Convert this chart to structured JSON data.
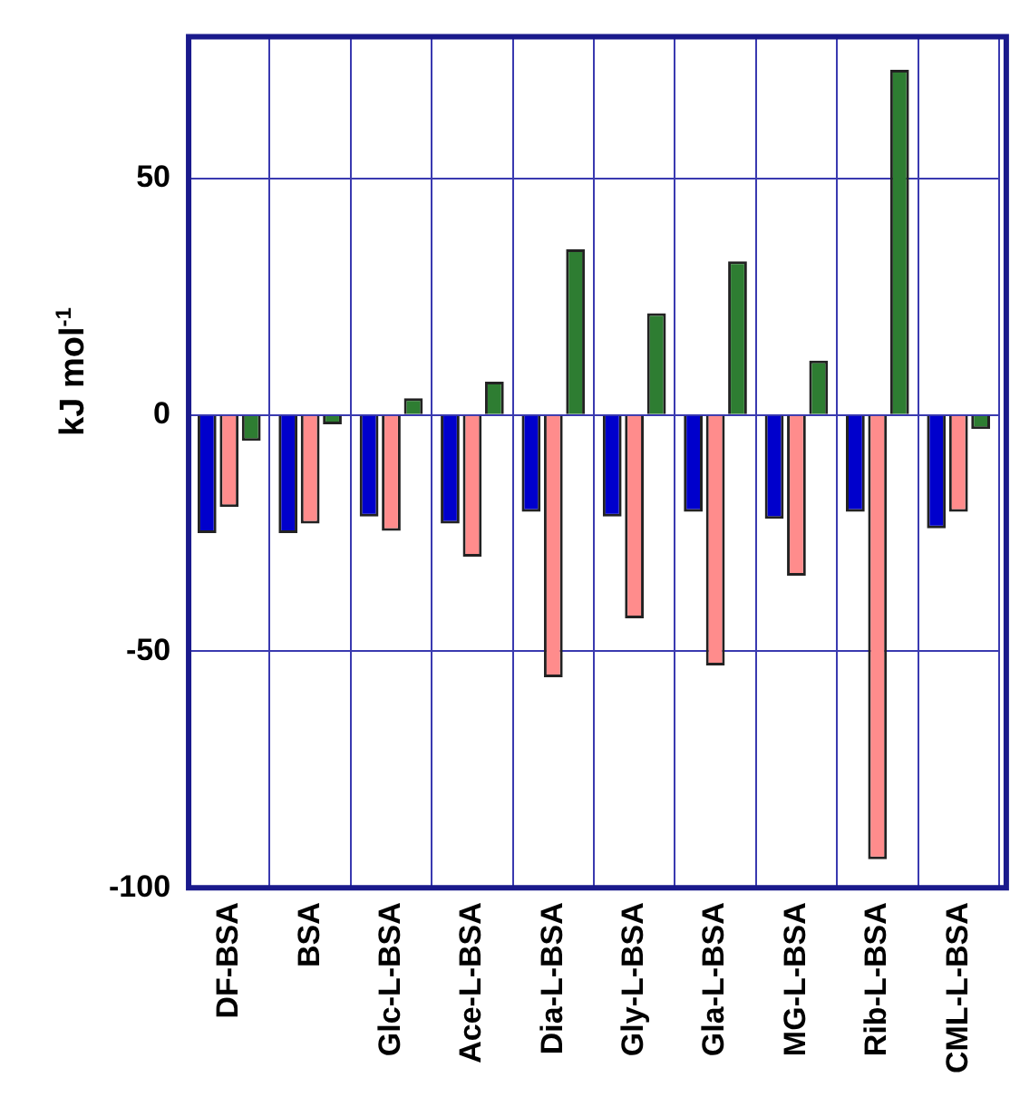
{
  "chart_data": {
    "type": "bar",
    "ylabel": "kJ mol$^{-1}$",
    "categories": [
      "DF-BSA",
      "BSA",
      "Glc-L-BSA",
      "Ace-L-BSA",
      "Dia-L-BSA",
      "Gly-L-BSA",
      "Gla-L-BSA",
      "MG-L-BSA",
      "Rib-L-BSA",
      "CML-L-BSA"
    ],
    "series": [
      {
        "color": "#0000cc",
        "values": [
          -25,
          -25,
          -21.5,
          -23,
          -20.5,
          -21.5,
          -20.5,
          -22,
          -20.5,
          -24
        ]
      },
      {
        "color": "#ff8c8c",
        "values": [
          -19.5,
          -23,
          -24.5,
          -30,
          -55.5,
          -43,
          -53,
          -34,
          -94,
          -20.5
        ]
      },
      {
        "color": "#2e7d32",
        "values": [
          -5.5,
          -2,
          3.5,
          7,
          35,
          21.5,
          32.5,
          11.5,
          73,
          -3
        ]
      }
    ],
    "ylim": [
      -100,
      80
    ],
    "yticks": [
      -100,
      -50,
      0,
      50
    ],
    "grid": true,
    "legend": false
  }
}
